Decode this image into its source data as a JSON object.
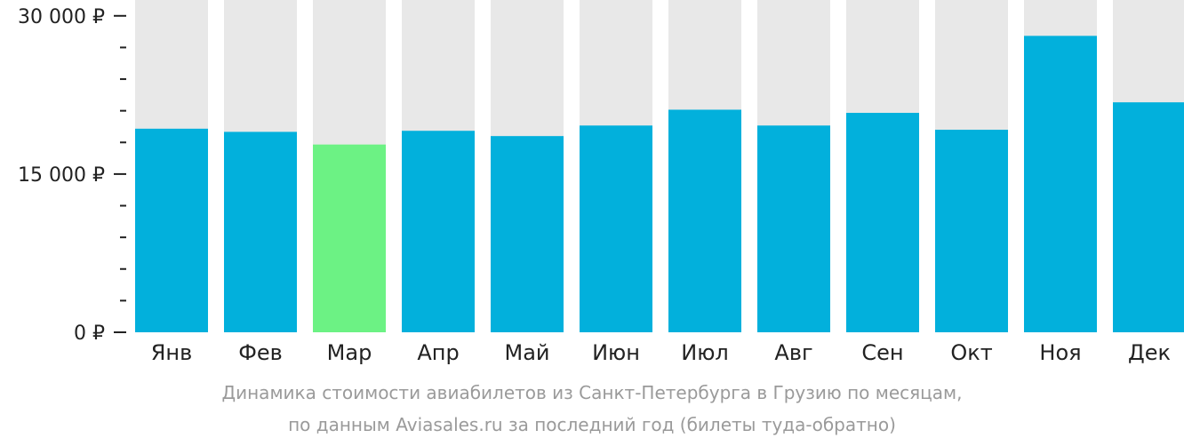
{
  "chart_data": {
    "type": "bar",
    "categories": [
      "Янв",
      "Фев",
      "Мар",
      "Апр",
      "Май",
      "Июн",
      "Июл",
      "Авг",
      "Сен",
      "Окт",
      "Ноя",
      "Дек"
    ],
    "values": [
      19300,
      19000,
      17800,
      19100,
      18600,
      19600,
      21100,
      19600,
      20800,
      19200,
      28100,
      21800
    ],
    "ylim": [
      0,
      31500
    ],
    "yticks": [
      0,
      15000,
      30000
    ],
    "ytick_labels": [
      "0 ₽",
      "15 000 ₽",
      "30 000 ₽"
    ],
    "minor_ytick_step": 3000,
    "highlight_category": "Мар",
    "colors": {
      "bar": "#02b0dc",
      "highlight": "#6cf284",
      "background_column": "#e8e8e8",
      "axis": "#222222"
    },
    "grid": false,
    "legend": "none"
  },
  "caption": {
    "line1": "Динамика стоимости авиабилетов из Санкт-Петербурга в Грузию по месяцам,",
    "line2": "по данным Aviasales.ru за последний год (билеты туда-обратно)"
  }
}
